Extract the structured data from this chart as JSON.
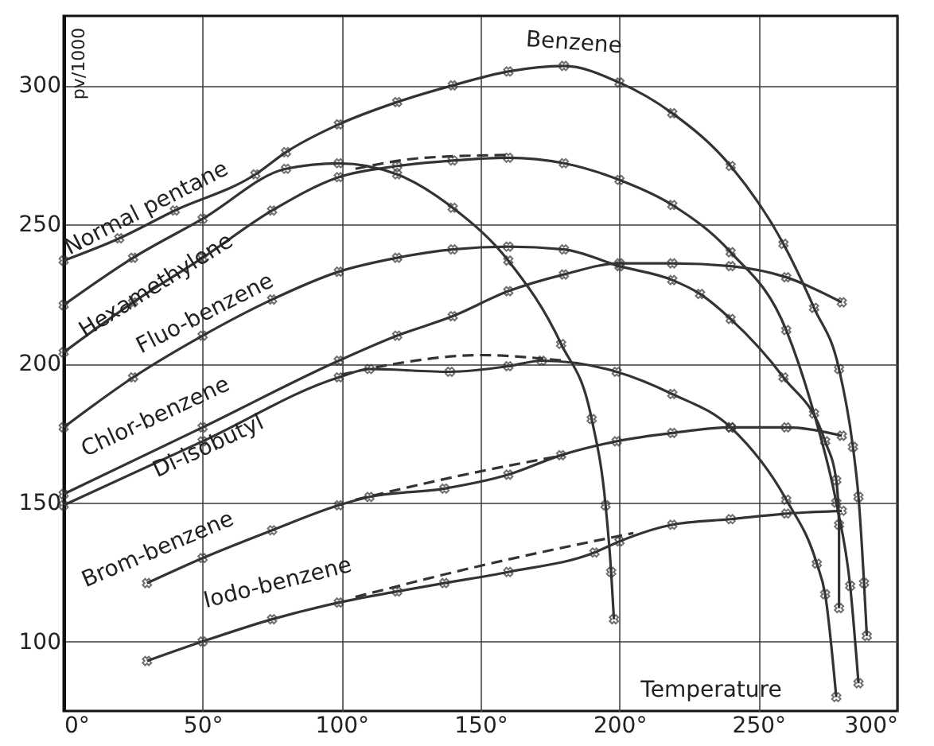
{
  "chart_data": {
    "type": "line",
    "xlabel": "Temperature",
    "ylabel": "pv/1000",
    "xlim": [
      0,
      300
    ],
    "ylim": [
      75,
      325
    ],
    "xticks": [
      {
        "value": 0,
        "label": "0°"
      },
      {
        "value": 50,
        "label": "50°"
      },
      {
        "value": 100,
        "label": "100°"
      },
      {
        "value": 150,
        "label": "150°"
      },
      {
        "value": 200,
        "label": "200°"
      },
      {
        "value": 250,
        "label": "250°"
      },
      {
        "value": 300,
        "label": "300°"
      }
    ],
    "yticks": [
      100,
      150,
      200,
      250,
      300
    ],
    "grid": true,
    "marker": "cross",
    "line_style": "solid",
    "series": [
      {
        "color": "#333333",
        "x": [
          0,
          20,
          40,
          69,
          80,
          99,
          120,
          140,
          160,
          180,
          200,
          219,
          240,
          259,
          270,
          279,
          284,
          286,
          288,
          289
        ],
        "values": [
          237,
          245,
          255,
          268,
          276,
          286,
          294,
          300,
          305,
          307,
          301,
          290,
          271,
          243,
          220,
          198,
          170,
          152,
          121,
          102
        ]
      },
      {
        "color": "#333333",
        "x": [
          0,
          25,
          50,
          80,
          99,
          120,
          140,
          160,
          179,
          190,
          195,
          197,
          198
        ],
        "values": [
          221,
          238,
          252,
          270,
          272,
          268,
          256,
          237,
          207,
          180,
          149,
          125,
          108
        ]
      },
      {
        "color": "#333333",
        "x": [
          0,
          25,
          50,
          75,
          99,
          120,
          140,
          160,
          180,
          200,
          219,
          240,
          260,
          270,
          278,
          283,
          286
        ],
        "values": [
          204,
          222,
          238,
          255,
          267,
          271,
          273,
          274,
          272,
          266,
          257,
          240,
          212,
          182,
          150,
          120,
          85
        ]
      },
      {
        "color": "#333333",
        "x": [
          0,
          25,
          50,
          75,
          99,
          120,
          140,
          160,
          180,
          200,
          219,
          229,
          240,
          259,
          274,
          278,
          279,
          279
        ],
        "values": [
          177,
          195,
          210,
          223,
          233,
          238,
          241,
          242,
          241,
          235,
          230,
          225,
          216,
          195,
          172,
          158,
          142,
          112
        ]
      },
      {
        "color": "#333333",
        "x": [
          0,
          50,
          99,
          120,
          140,
          160,
          180,
          200,
          219,
          240,
          260,
          280
        ],
        "values": [
          153,
          177,
          201,
          210,
          217,
          226,
          232,
          236,
          236,
          235,
          231,
          222
        ]
      },
      {
        "color": "#333333",
        "x": [
          0,
          50,
          99,
          110,
          139,
          160,
          172,
          199,
          219,
          240,
          260,
          271,
          274,
          278
        ],
        "values": [
          149,
          172,
          195,
          198,
          197,
          199,
          201,
          197,
          189,
          177,
          151,
          128,
          117,
          80
        ]
      },
      {
        "color": "#333333",
        "x": [
          30,
          50,
          75,
          99,
          110,
          137,
          160,
          179,
          199,
          219,
          240,
          260,
          280
        ],
        "values": [
          121,
          130,
          140,
          149,
          152,
          155,
          160,
          167,
          172,
          175,
          177,
          177,
          174
        ]
      },
      {
        "color": "#333333",
        "x": [
          30,
          50,
          75,
          99,
          120,
          137,
          160,
          191,
          200,
          219,
          240,
          260,
          280
        ],
        "values": [
          93,
          100,
          108,
          114,
          118,
          121,
          125,
          132,
          136,
          142,
          144,
          146,
          147
        ]
      },
      {
        "color": "#333333",
        "line_style": "dashed",
        "marker": "none",
        "x": [
          105,
          130,
          160
        ],
        "values": [
          270,
          274,
          275
        ]
      },
      {
        "color": "#333333",
        "line_style": "dashed",
        "marker": "none",
        "x": [
          100,
          120,
          150,
          180
        ],
        "values": [
          196,
          200,
          203,
          201
        ]
      },
      {
        "color": "#333333",
        "line_style": "dashed",
        "marker": "none",
        "x": [
          105,
          149,
          180
        ],
        "values": [
          151,
          161,
          167
        ]
      },
      {
        "color": "#333333",
        "line_style": "dashed",
        "marker": "none",
        "x": [
          105,
          149,
          205
        ],
        "values": [
          116,
          127,
          139
        ]
      }
    ],
    "annotations": [
      "Normal pentane",
      "Benzene",
      "Hexamethylene",
      "Fluo-benzene",
      "Chlor-benzene",
      "Di-isobutyl",
      "Brom-benzene",
      "Iodo-benzene"
    ]
  }
}
